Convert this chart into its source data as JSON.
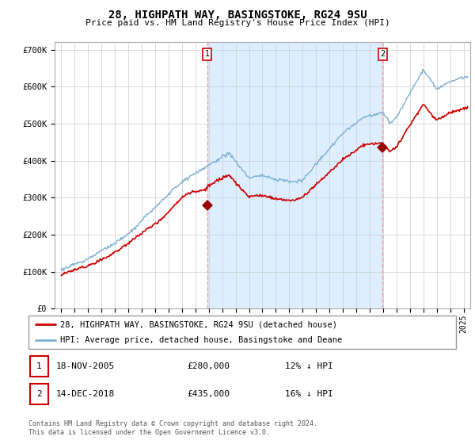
{
  "title": "28, HIGHPATH WAY, BASINGSTOKE, RG24 9SU",
  "subtitle": "Price paid vs. HM Land Registry's House Price Index (HPI)",
  "ylim": [
    0,
    720000
  ],
  "yticks": [
    0,
    100000,
    200000,
    300000,
    400000,
    500000,
    600000,
    700000
  ],
  "ytick_labels": [
    "£0",
    "£100K",
    "£200K",
    "£300K",
    "£400K",
    "£500K",
    "£600K",
    "£700K"
  ],
  "hpi_color": "#7bafd4",
  "price_color": "#cc0000",
  "marker_color": "#990000",
  "grid_color": "#cccccc",
  "shaded_color": "#ddeeff",
  "annotation_box_color": "#cc0000",
  "vline_color": "#ff9999",
  "purchase1_x": 2005.88,
  "purchase1_y": 280000,
  "purchase1_label": "1",
  "purchase2_x": 2018.95,
  "purchase2_y": 435000,
  "purchase2_label": "2",
  "footer_line1": "Contains HM Land Registry data © Crown copyright and database right 2024.",
  "footer_line2": "This data is licensed under the Open Government Licence v3.0.",
  "legend_entry1": "28, HIGHPATH WAY, BASINGSTOKE, RG24 9SU (detached house)",
  "legend_entry2": "HPI: Average price, detached house, Basingstoke and Deane",
  "table_row1": [
    "1",
    "18-NOV-2005",
    "£280,000",
    "12% ↓ HPI"
  ],
  "table_row2": [
    "2",
    "14-DEC-2018",
    "£435,000",
    "16% ↓ HPI"
  ],
  "xlim_start": 1994.5,
  "xlim_end": 2025.5,
  "xticks": [
    1995,
    1996,
    1997,
    1998,
    1999,
    2000,
    2001,
    2002,
    2003,
    2004,
    2005,
    2006,
    2007,
    2008,
    2009,
    2010,
    2011,
    2012,
    2013,
    2014,
    2015,
    2016,
    2017,
    2018,
    2019,
    2020,
    2021,
    2022,
    2023,
    2024,
    2025
  ]
}
